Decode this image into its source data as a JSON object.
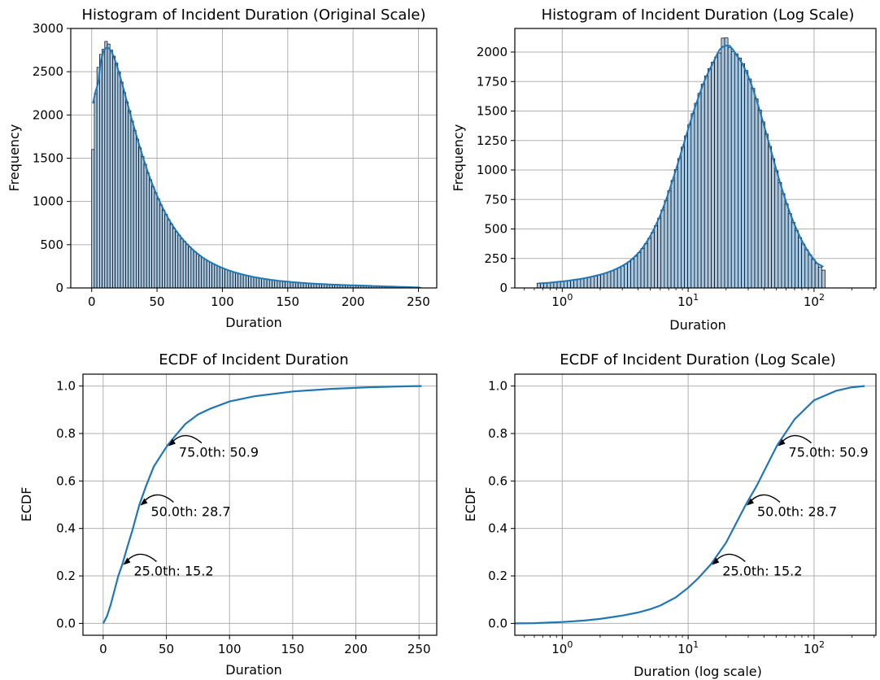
{
  "colors": {
    "accent": "#1f77b4",
    "bar_fill": "#a6c8e4",
    "bar_edge": "#000000",
    "grid": "#b0b0b0"
  },
  "chart_data": [
    {
      "type": "bar",
      "title": "Histogram of Incident Duration (Original Scale)",
      "xlabel": "Duration",
      "ylabel": "Frequency",
      "xlim": [
        -16,
        264
      ],
      "ylim": [
        0,
        3000
      ],
      "x_ticks": [
        0,
        50,
        100,
        150,
        200,
        250
      ],
      "x_tick_labels": [
        "0",
        "50",
        "100",
        "150",
        "200",
        "250"
      ],
      "y_ticks": [
        0,
        500,
        1000,
        1500,
        2000,
        2500,
        3000
      ],
      "y_tick_labels": [
        "0",
        "500",
        "1000",
        "1500",
        "2000",
        "2500",
        "3000"
      ],
      "grid": true,
      "kde_line": true,
      "bins": {
        "start": 0,
        "width": 2,
        "values": [
          1600,
          2250,
          2550,
          2700,
          2760,
          2850,
          2820,
          2750,
          2680,
          2600,
          2500,
          2380,
          2260,
          2150,
          2050,
          1930,
          1820,
          1720,
          1620,
          1520,
          1430,
          1330,
          1250,
          1170,
          1100,
          1030,
          960,
          900,
          850,
          790,
          740,
          690,
          650,
          610,
          570,
          540,
          505,
          475,
          445,
          420,
          395,
          370,
          350,
          330,
          310,
          295,
          280,
          265,
          250,
          237,
          225,
          213,
          202,
          192,
          182,
          173,
          165,
          157,
          150,
          143,
          136,
          130,
          124,
          118,
          113,
          108,
          103,
          99,
          94,
          90,
          86,
          83,
          80,
          77,
          74,
          71,
          68,
          66,
          63,
          61,
          59,
          57,
          55,
          53,
          51,
          49,
          47,
          46,
          44,
          43,
          41,
          40,
          39,
          38,
          36,
          35,
          34,
          33,
          32,
          31,
          30,
          29,
          28,
          27,
          26,
          25,
          24,
          23,
          22,
          21,
          20,
          19,
          18,
          17,
          16,
          15,
          14,
          13,
          12,
          11,
          10,
          9,
          8,
          7,
          6,
          5
        ]
      }
    },
    {
      "type": "bar",
      "title": "Histogram of Incident Duration (Log Scale)",
      "xlabel": "Duration",
      "ylabel": "Frequency",
      "x_scale": "log",
      "xlim": [
        0.42,
        310
      ],
      "ylim": [
        0,
        2200
      ],
      "x_ticks": [
        1,
        10,
        100
      ],
      "x_tick_labels": [
        "10^0",
        "10^1",
        "10^2"
      ],
      "y_ticks": [
        0,
        250,
        500,
        750,
        1000,
        1250,
        1500,
        1750,
        2000
      ],
      "y_tick_labels": [
        "0",
        "250",
        "500",
        "750",
        "1000",
        "1250",
        "1500",
        "1750",
        "2000"
      ],
      "grid": true,
      "kde_line": true,
      "bins": {
        "log10_start": -0.2,
        "log10_width": 0.0266,
        "values": [
          40,
          38,
          42,
          44,
          47,
          50,
          52,
          55,
          58,
          62,
          66,
          70,
          74,
          79,
          84,
          90,
          96,
          102,
          110,
          118,
          126,
          135,
          146,
          158,
          171,
          186,
          203,
          222,
          244,
          270,
          300,
          335,
          375,
          420,
          470,
          528,
          592,
          662,
          740,
          824,
          912,
          1004,
          1098,
          1194,
          1290,
          1385,
          1478,
          1566,
          1650,
          1728,
          1798,
          1860,
          1914,
          1958,
          1992,
          2118,
          2120,
          2040,
          2005,
          1985,
          1950,
          1902,
          1843,
          1772,
          1692,
          1603,
          1508,
          1408,
          1305,
          1200,
          1096,
          993,
          894,
          800,
          712,
          630,
          556,
          488,
          427,
          372,
          324,
          281,
          242,
          208,
          178,
          151
        ]
      }
    },
    {
      "type": "line",
      "title": "ECDF of Incident Duration",
      "xlabel": "Duration",
      "ylabel": "ECDF",
      "xlim": [
        -16,
        264
      ],
      "ylim": [
        -0.05,
        1.05
      ],
      "x_ticks": [
        0,
        50,
        100,
        150,
        200,
        250
      ],
      "x_tick_labels": [
        "0",
        "50",
        "100",
        "150",
        "200",
        "250"
      ],
      "y_ticks": [
        0,
        0.2,
        0.4,
        0.6,
        0.8,
        1.0
      ],
      "y_tick_labels": [
        "0.0",
        "0.2",
        "0.4",
        "0.6",
        "0.8",
        "1.0"
      ],
      "grid": true,
      "series": [
        {
          "x": [
            0,
            3,
            6,
            9,
            12,
            15.2,
            19,
            23,
            28.7,
            34,
            40,
            46,
            50.9,
            57,
            65,
            75,
            85,
            100,
            120,
            150,
            180,
            210,
            240,
            252
          ],
          "y": [
            0,
            0.03,
            0.08,
            0.14,
            0.2,
            0.25,
            0.32,
            0.39,
            0.5,
            0.58,
            0.66,
            0.71,
            0.75,
            0.79,
            0.84,
            0.88,
            0.905,
            0.935,
            0.957,
            0.977,
            0.988,
            0.995,
            0.999,
            1.0
          ]
        }
      ],
      "annotations": [
        {
          "text": "25.0th: 15.2",
          "x": 15.2,
          "y": 0.25
        },
        {
          "text": "50.0th: 28.7",
          "x": 28.7,
          "y": 0.5
        },
        {
          "text": "75.0th: 50.9",
          "x": 50.9,
          "y": 0.75
        }
      ]
    },
    {
      "type": "line",
      "title": "ECDF of Incident Duration (Log Scale)",
      "xlabel": "Duration (log scale)",
      "ylabel": "ECDF",
      "x_scale": "log",
      "xlim": [
        0.42,
        310
      ],
      "ylim": [
        -0.05,
        1.05
      ],
      "x_ticks": [
        1,
        10,
        100
      ],
      "x_tick_labels": [
        "10^0",
        "10^1",
        "10^2"
      ],
      "y_ticks": [
        0,
        0.2,
        0.4,
        0.6,
        0.8,
        1.0
      ],
      "y_tick_labels": [
        "0.0",
        "0.2",
        "0.4",
        "0.6",
        "0.8",
        "1.0"
      ],
      "grid": true,
      "series": [
        {
          "x": [
            0.42,
            0.6,
            1,
            1.5,
            2,
            3,
            4,
            5,
            6,
            8,
            10,
            12,
            15.2,
            20,
            28.7,
            35,
            50.9,
            70,
            100,
            150,
            200,
            252
          ],
          "y": [
            0,
            0.001,
            0.006,
            0.012,
            0.019,
            0.033,
            0.046,
            0.06,
            0.075,
            0.11,
            0.15,
            0.19,
            0.25,
            0.34,
            0.5,
            0.58,
            0.75,
            0.86,
            0.94,
            0.98,
            0.995,
            1.0
          ]
        }
      ],
      "annotations": [
        {
          "text": "25.0th: 15.2",
          "x": 15.2,
          "y": 0.25
        },
        {
          "text": "50.0th: 28.7",
          "x": 28.7,
          "y": 0.5
        },
        {
          "text": "75.0th: 50.9",
          "x": 50.9,
          "y": 0.75
        }
      ]
    }
  ]
}
